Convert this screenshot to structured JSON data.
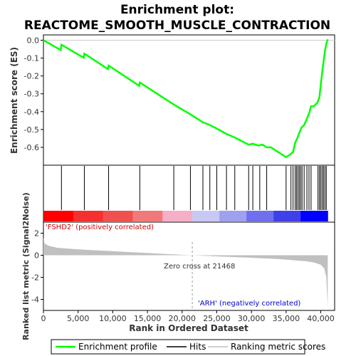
{
  "chart_data": {
    "type": "line",
    "title_line1": "Enrichment plot:",
    "title_line2": "REACTOME_SMOOTH_MUSCLE_CONTRACTION",
    "es_panel": {
      "ylabel": "Enrichment score (ES)",
      "ylim": [
        -0.7,
        0.03
      ],
      "yticks": [
        "0.0",
        "-0.1",
        "-0.2",
        "-0.3",
        "-0.4",
        "-0.5",
        "-0.6"
      ],
      "ytick_values": [
        0.0,
        -0.1,
        -0.2,
        -0.3,
        -0.4,
        -0.5,
        -0.6
      ],
      "line_color": "#00ff00",
      "profile": {
        "x": [
          0,
          2500,
          2600,
          5800,
          5900,
          9300,
          9400,
          13800,
          13900,
          18800,
          21200,
          23000,
          24000,
          25000,
          26400,
          27600,
          29600,
          30200,
          31000,
          31600,
          32200,
          32800,
          33800,
          35000,
          35600,
          36000,
          36300,
          36600,
          36900,
          37200,
          37600,
          38000,
          38300,
          38600,
          39000,
          39500,
          39800,
          40000,
          40200,
          40400,
          40600,
          40800,
          41000
        ],
        "y": [
          0.0,
          -0.055,
          -0.025,
          -0.098,
          -0.075,
          -0.162,
          -0.142,
          -0.255,
          -0.237,
          -0.36,
          -0.415,
          -0.46,
          -0.475,
          -0.495,
          -0.525,
          -0.545,
          -0.585,
          -0.58,
          -0.59,
          -0.585,
          -0.6,
          -0.6,
          -0.625,
          -0.655,
          -0.64,
          -0.625,
          -0.575,
          -0.55,
          -0.52,
          -0.49,
          -0.475,
          -0.44,
          -0.41,
          -0.37,
          -0.37,
          -0.35,
          -0.32,
          -0.25,
          -0.18,
          -0.12,
          -0.06,
          -0.02,
          0.005
        ]
      }
    },
    "hits_panel": {
      "hit_positions": [
        2600,
        5900,
        9400,
        13900,
        18800,
        21200,
        23000,
        24000,
        25000,
        26400,
        27600,
        29600,
        30200,
        31200,
        32200,
        35000,
        35700,
        36000,
        36300,
        36500,
        36700,
        36900,
        37100,
        37300,
        37600,
        38000,
        38300,
        38600,
        39600,
        39800,
        40000,
        40200,
        40400,
        40600,
        40800
      ]
    },
    "metric_panel": {
      "ylabel": "Ranked list metric (Signal2Noise)",
      "ylim": [
        -5,
        3
      ],
      "yticks": [
        "2",
        "0",
        "-2",
        "-4"
      ],
      "ytick_values": [
        2,
        0,
        -2,
        -4
      ],
      "zero_cross_label": "Zero cross at 21468",
      "zero_cross": 21468,
      "pos_label": "'FSHD2' (positively correlated)",
      "neg_label": "'ARH' (negatively correlated)",
      "pos_color": "#ff0000",
      "neg_color": "#0000ff",
      "metric_curve": {
        "x": [
          0,
          200,
          800,
          2000,
          4000,
          6000,
          9000,
          12000,
          15000,
          18000,
          21468,
          25000,
          28000,
          31000,
          34000,
          36000,
          38000,
          39000,
          40000,
          40500,
          40800,
          41000
        ],
        "y": [
          1.6,
          1.05,
          0.85,
          0.68,
          0.58,
          0.5,
          0.4,
          0.3,
          0.2,
          0.1,
          0.0,
          -0.1,
          -0.18,
          -0.26,
          -0.35,
          -0.45,
          -0.55,
          -0.65,
          -0.85,
          -1.2,
          -2.0,
          -4.8
        ]
      }
    },
    "xaxis": {
      "xlabel": "Rank in Ordered Dataset",
      "xlim": [
        0,
        42000
      ],
      "xticks": [
        "0",
        "5,000",
        "10,000",
        "15,000",
        "20,000",
        "25,000",
        "30,000",
        "35,000",
        "40,000"
      ],
      "xtick_values": [
        0,
        5000,
        10000,
        15000,
        20000,
        25000,
        30000,
        35000,
        40000
      ],
      "dataset_size": 41000
    },
    "legend": {
      "placement": "bottom",
      "entries": [
        {
          "label": "Enrichment profile",
          "color": "#00ff00"
        },
        {
          "label": "Hits",
          "color": "#000000"
        },
        {
          "label": "Ranking metric scores",
          "color": "#c0c0c0"
        }
      ]
    }
  }
}
